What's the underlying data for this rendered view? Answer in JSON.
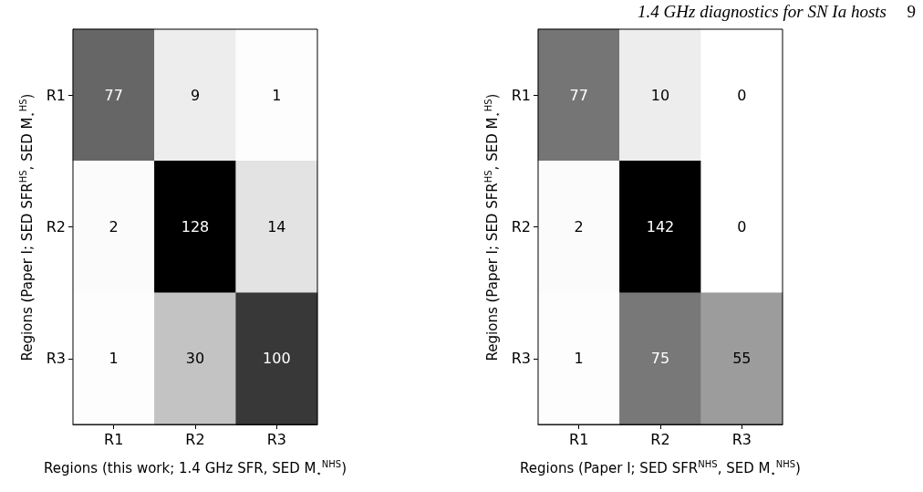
{
  "chart_data": [
    {
      "type": "heatmap",
      "categories": [
        "R1",
        "R2",
        "R3"
      ],
      "y_categories": [
        "R1",
        "R2",
        "R3"
      ],
      "cells": [
        [
          77,
          9,
          1
        ],
        [
          2,
          128,
          14
        ],
        [
          1,
          30,
          100
        ]
      ],
      "data_labels": true,
      "xlabel": "Regions (this work; 1.4 GHz SFR, SED M$_{⋆}$$^{NHS}$)",
      "ylabel": "Regions (Paper I; SED SFR$^{HS}$, SED M$_{⋆}$$^{HS}$)"
    },
    {
      "type": "heatmap",
      "categories": [
        "R1",
        "R2",
        "R3"
      ],
      "y_categories": [
        "R1",
        "R2",
        "R3"
      ],
      "cells": [
        [
          77,
          10,
          0
        ],
        [
          2,
          142,
          0
        ],
        [
          1,
          75,
          55
        ]
      ],
      "data_labels": true,
      "xlabel": "Regions (Paper I; SED SFR$^{NHS}$, SED M$_{⋆}$$^{NHS}$)",
      "ylabel": "Regions (Paper I; SED SFR$^{HS}$, SED M$_{⋆}$$^{HS}$)",
      "annotations": [
        "1.4 GHz diagnostics for SN Ia hosts",
        "9"
      ]
    }
  ]
}
